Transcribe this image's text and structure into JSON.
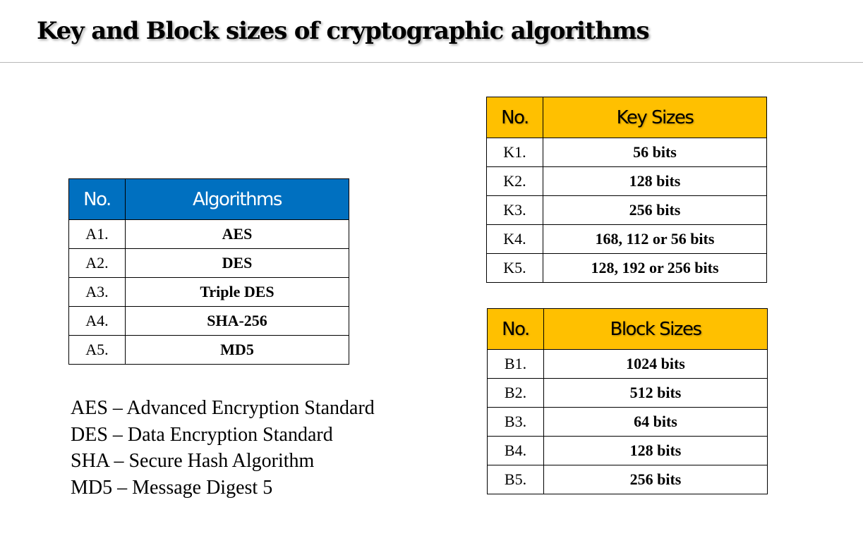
{
  "title": "Key and Block sizes of cryptographic algorithms",
  "algorithms_table": {
    "headers": [
      "No.",
      "Algorithms"
    ],
    "rows": [
      [
        "A1.",
        "AES"
      ],
      [
        "A2.",
        "DES"
      ],
      [
        "A3.",
        "Triple DES"
      ],
      [
        "A4.",
        "SHA-256"
      ],
      [
        "A5.",
        "MD5"
      ]
    ]
  },
  "key_table": {
    "headers": [
      "No.",
      "Key Sizes"
    ],
    "rows": [
      [
        "K1.",
        "56 bits"
      ],
      [
        "K2.",
        "128 bits"
      ],
      [
        "K3.",
        "256 bits"
      ],
      [
        "K4.",
        "168, 112 or 56 bits"
      ],
      [
        "K5.",
        "128, 192 or 256 bits"
      ]
    ]
  },
  "block_table": {
    "headers": [
      "No.",
      "Block Sizes"
    ],
    "rows": [
      [
        "B1.",
        "1024 bits"
      ],
      [
        "B2.",
        "512 bits"
      ],
      [
        "B3.",
        "64 bits"
      ],
      [
        "B4.",
        "128 bits"
      ],
      [
        "B5.",
        "256 bits"
      ]
    ]
  },
  "legend": [
    "AES – Advanced Encryption Standard",
    "DES – Data Encryption Standard",
    "SHA – Secure Hash Algorithm",
    "MD5 – Message Digest 5"
  ],
  "colors": {
    "algorithms_header": "#0070c0",
    "sizes_header": "#ffc000"
  }
}
